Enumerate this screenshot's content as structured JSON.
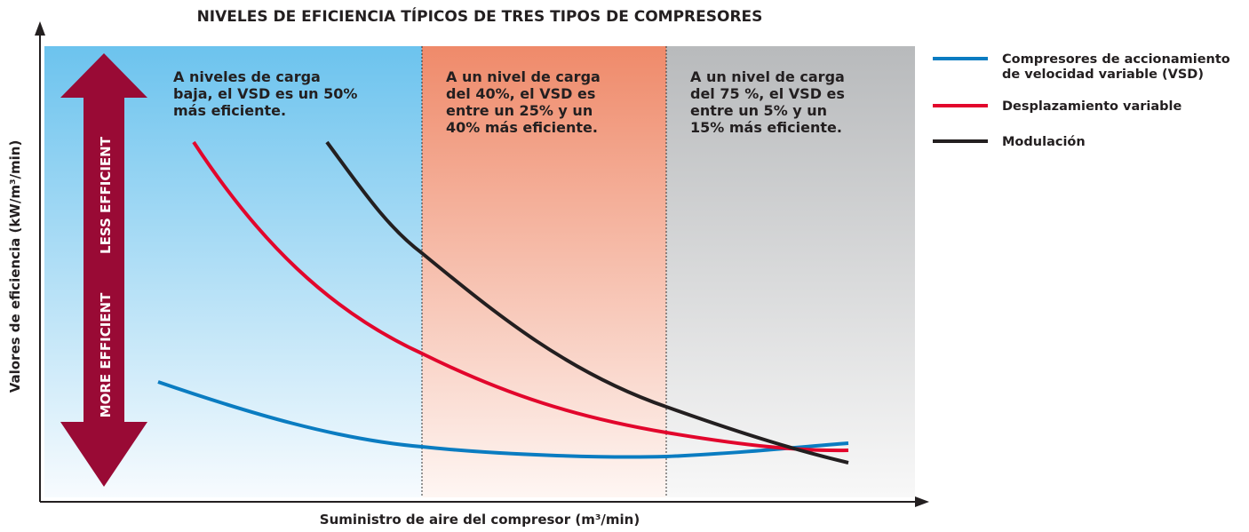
{
  "title": "NIVELES DE EFICIENCIA TÍPICOS DE TRES TIPOS DE COMPRESORES",
  "y_axis_label": "Valores de eficiencia (kW/m³/min)",
  "x_axis_label": "Suministro de aire del compresor (m³/min)",
  "arrow_labels": {
    "top": "LESS EFFICIENT",
    "bottom": "MORE EFFICIENT"
  },
  "annotations": [
    {
      "lines": [
        "A niveles de carga",
        "baja, el VSD es un 50%",
        "más eficiente."
      ]
    },
    {
      "lines": [
        "A un nivel de carga",
        "del 40%, el VSD es",
        "entre un 25% y un",
        "40% más eficiente."
      ]
    },
    {
      "lines": [
        "A un nivel de carga",
        "del 75 %, el VSD es",
        "entre un 5% y un",
        "15% más eficiente."
      ]
    }
  ],
  "legend": [
    {
      "lines": [
        "Compresores de accionamiento",
        "de velocidad variable (VSD)"
      ],
      "color": "#0a7cc1"
    },
    {
      "lines": [
        "Desplazamiento variable"
      ],
      "color": "#e2062c"
    },
    {
      "lines": [
        "Modulación"
      ],
      "color": "#231f20"
    }
  ]
}
